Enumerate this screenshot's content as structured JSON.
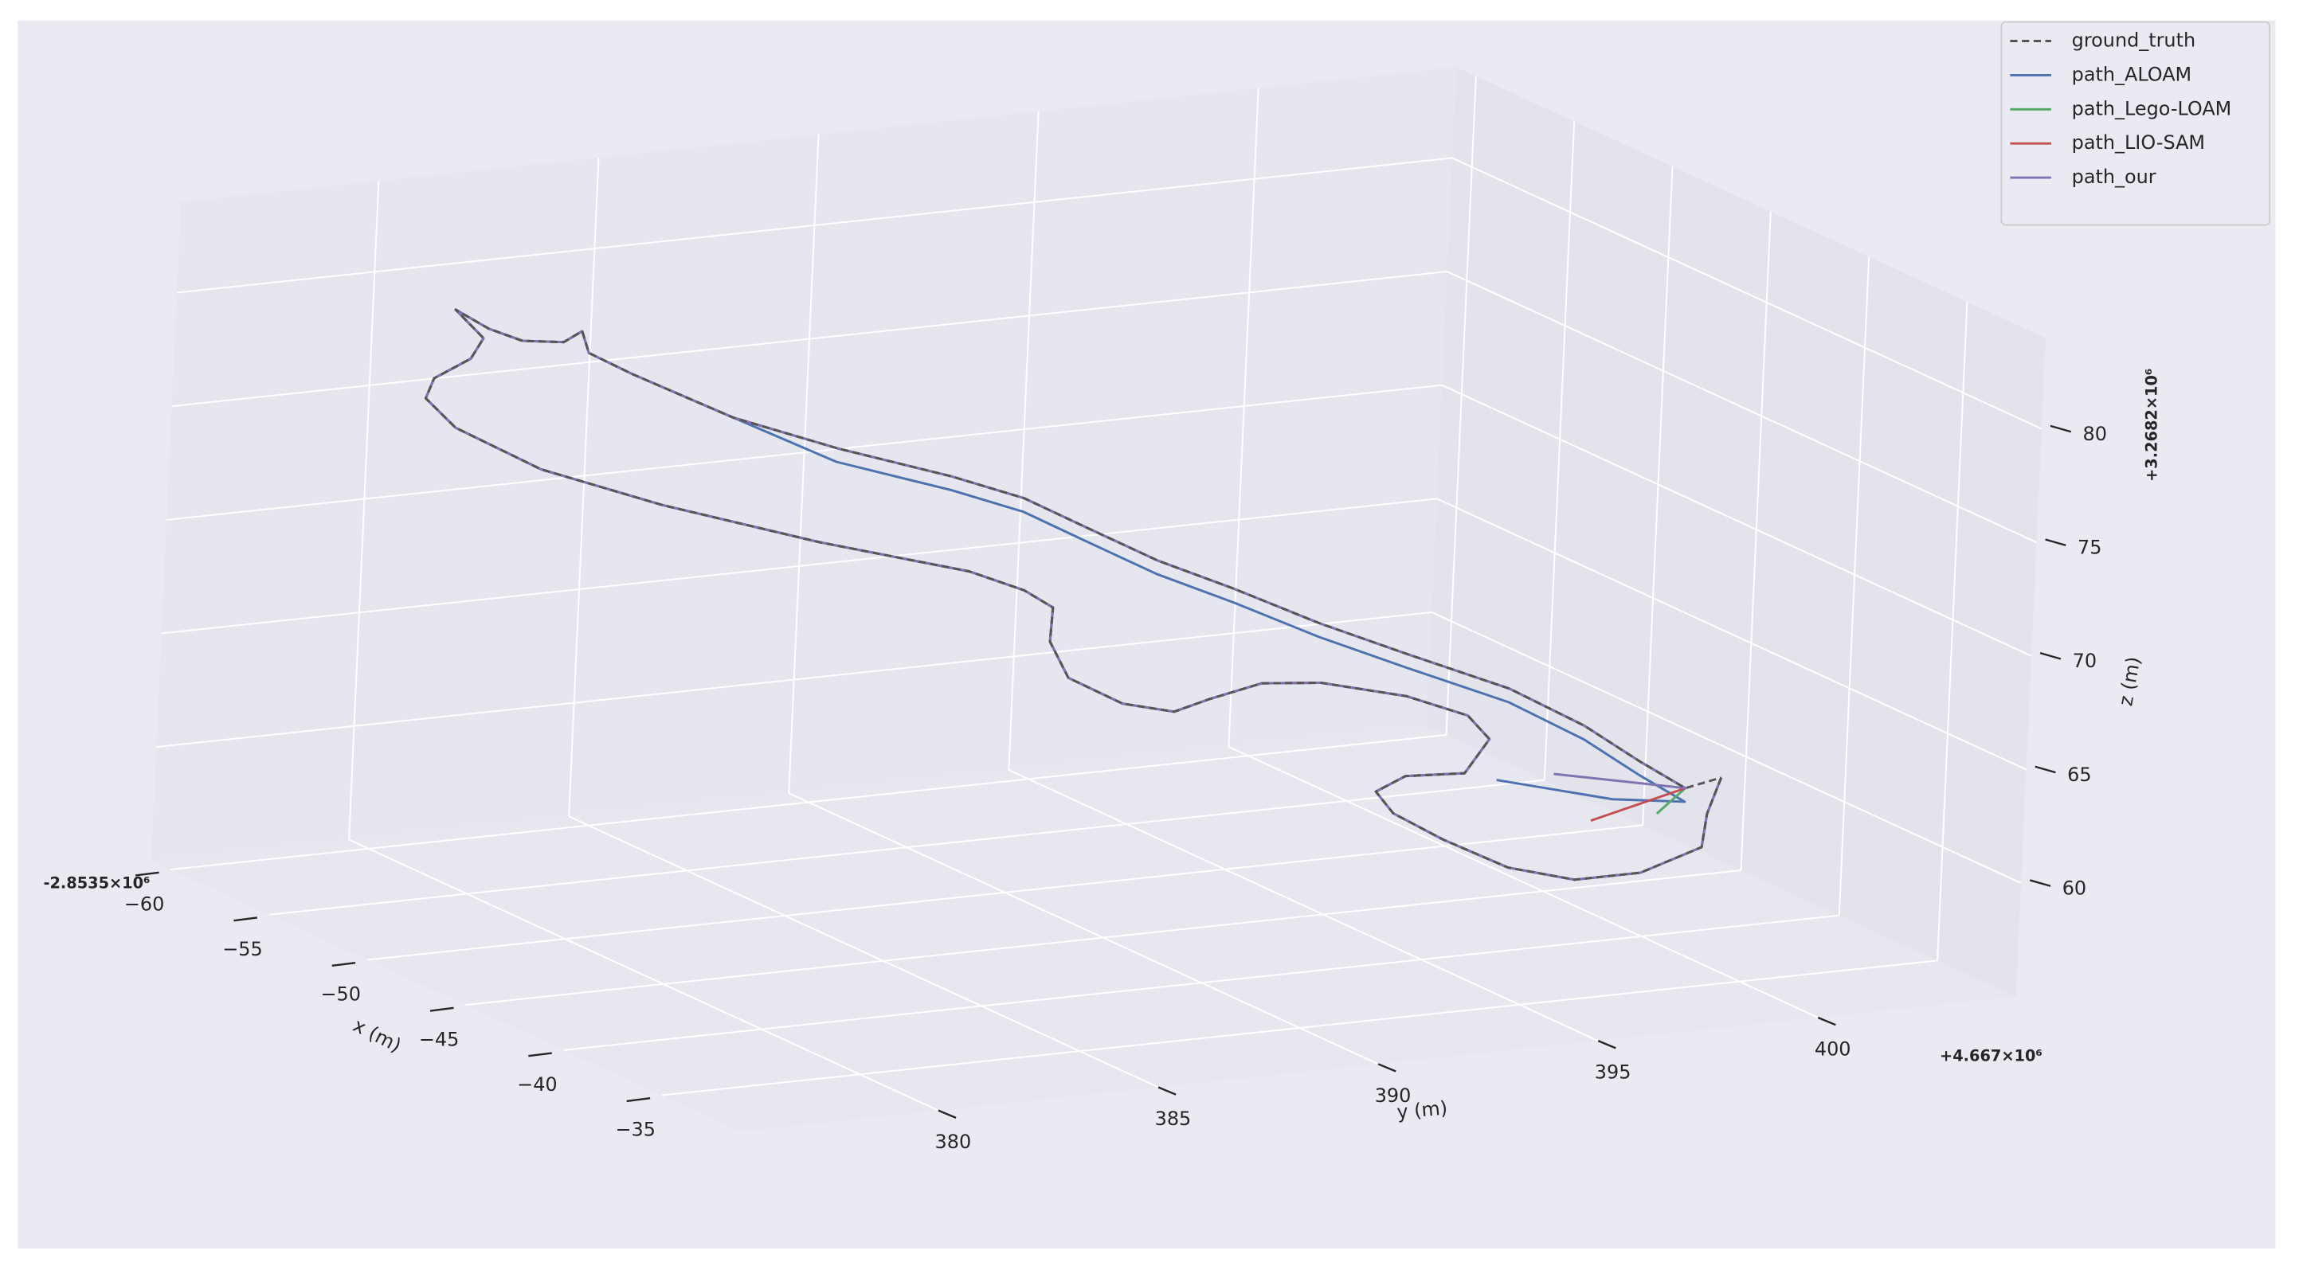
{
  "chart_data": {
    "type": "line3d",
    "xlabel": "x (m)",
    "ylabel": "y (m)",
    "zlabel": "z (m)",
    "x_offset_label": "-2.8535×10⁶",
    "y_offset_label": "+4.667×10⁶",
    "z_offset_label": "+3.2682×10⁶",
    "xlim": [
      -61,
      -31
    ],
    "ylim": [
      375.5,
      404.5
    ],
    "zlim": [
      55,
      84
    ],
    "xticks": [
      {
        "value": -60,
        "label": "−60"
      },
      {
        "value": -55,
        "label": "−55"
      },
      {
        "value": -50,
        "label": "−50"
      },
      {
        "value": -45,
        "label": "−45"
      },
      {
        "value": -40,
        "label": "−40"
      },
      {
        "value": -35,
        "label": "−35"
      }
    ],
    "yticks": [
      380,
      385,
      390,
      395,
      400
    ],
    "zticks": [
      60,
      65,
      70,
      75,
      80
    ],
    "grid": true,
    "legend": "upper right",
    "series": [
      {
        "name": "ground_truth",
        "color": "#555555",
        "linestyle": "dashed",
        "x": [
          -40.3,
          -39.4,
          -38.5,
          -38.0,
          -38.0,
          -38.5,
          -39.4,
          -40.2,
          -40.9,
          -41.2,
          -41.1,
          -41.9,
          -42.6,
          -43.3,
          -43.9,
          -44.0,
          -43.7,
          -43.5,
          -43.9,
          -44.7,
          -45.7,
          -46.5,
          -47.1,
          -47.7,
          -48.9,
          -50.3,
          -51.6,
          -52.9,
          -53.8,
          -54.3,
          -54.7,
          -55.2,
          -56.0,
          -55.4,
          -55.0,
          -54.9,
          -55.1,
          -54.5,
          -53.8,
          -52.4,
          -51.3,
          -50.3,
          -49.5,
          -48.6,
          -47.5,
          -46.5,
          -45.4,
          -44.4,
          -43.2,
          -42.0,
          -40.9,
          -40.1,
          -40.3
        ],
        "y": [
          401.8,
          401.1,
          400.6,
          399.0,
          397.5,
          396.2,
          395.1,
          394.3,
          394.2,
          395.0,
          396.3,
          397.2,
          397.0,
          395.9,
          394.2,
          392.9,
          391.6,
          390.7,
          389.7,
          388.8,
          388.8,
          389.2,
          388.8,
          387.8,
          384.9,
          381.9,
          379.7,
          378.3,
          378.0,
          378.4,
          379.4,
          379.9,
          379.6,
          380.1,
          380.7,
          381.6,
          382.1,
          382.0,
          382.7,
          384.4,
          386.3,
          388.5,
          389.8,
          390.8,
          392.0,
          393.3,
          394.8,
          396.4,
          398.2,
          399.4,
          400.2,
          400.9,
          401.8
        ],
        "z": [
          61.5,
          60.4,
          59.4,
          58.8,
          58.8,
          59.4,
          60.5,
          61.5,
          62.2,
          62.6,
          62.5,
          63.5,
          64.3,
          65.1,
          65.8,
          66.0,
          65.7,
          65.4,
          65.8,
          66.8,
          68.0,
          69.1,
          69.7,
          70.5,
          71.9,
          73.6,
          75.1,
          76.7,
          77.7,
          78.3,
          78.8,
          79.4,
          80.4,
          79.7,
          79.2,
          79.0,
          79.3,
          78.6,
          77.8,
          76.1,
          74.8,
          73.5,
          72.6,
          71.5,
          70.2,
          69.1,
          67.7,
          66.4,
          65.0,
          63.6,
          62.3,
          61.3,
          61.5
        ]
      },
      {
        "name": "path_ALOAM",
        "color": "#4c72b0",
        "linestyle": "solid",
        "x": [
          -40.3,
          -39.4,
          -38.5,
          -38.0,
          -38.0,
          -38.5,
          -39.4,
          -40.2,
          -40.9,
          -41.2,
          -41.1,
          -41.9,
          -42.6,
          -43.3,
          -43.9,
          -44.0,
          -43.7,
          -43.5,
          -43.9,
          -44.7,
          -45.7,
          -46.5,
          -47.1,
          -47.7,
          -48.9,
          -50.3,
          -51.6,
          -52.9,
          -53.8,
          -54.3,
          -54.7,
          -55.2,
          -56.0,
          -55.4,
          -55.0,
          -54.9,
          -55.1,
          -54.5,
          -53.8,
          -52.4,
          -51.3,
          -50.3,
          -49.5,
          -48.6,
          -47.5,
          -46.5,
          -45.4,
          -44.4,
          -43.2,
          -42.0,
          -40.9,
          -40.1,
          -40.0,
          -40.8
        ],
        "y": [
          401.8,
          401.1,
          400.6,
          399.0,
          397.5,
          396.2,
          395.1,
          394.3,
          394.2,
          395.0,
          396.3,
          397.2,
          397.0,
          395.9,
          394.2,
          392.9,
          391.6,
          390.7,
          389.7,
          388.8,
          388.8,
          389.2,
          388.8,
          387.8,
          384.9,
          381.9,
          379.7,
          378.3,
          378.0,
          378.4,
          379.4,
          379.9,
          379.6,
          380.1,
          380.7,
          381.6,
          382.1,
          382.0,
          382.7,
          384.4,
          386.3,
          388.5,
          389.8,
          390.8,
          392.0,
          393.3,
          394.8,
          396.4,
          398.2,
          399.4,
          400.2,
          400.9,
          399.2,
          396.9
        ],
        "z": [
          61.5,
          60.4,
          59.4,
          58.8,
          58.8,
          59.4,
          60.5,
          61.5,
          62.2,
          62.6,
          62.5,
          63.5,
          64.3,
          65.1,
          65.8,
          66.0,
          65.7,
          65.4,
          65.8,
          66.8,
          68.0,
          69.1,
          69.7,
          70.5,
          71.9,
          73.6,
          75.1,
          76.7,
          77.7,
          78.3,
          78.8,
          79.4,
          80.4,
          79.7,
          79.2,
          79.0,
          79.3,
          78.6,
          77.8,
          76.1,
          74.2,
          72.9,
          72.0,
          70.9,
          69.6,
          68.5,
          67.1,
          65.8,
          64.4,
          63.0,
          61.7,
          60.7,
          61.2,
          62.2
        ]
      },
      {
        "name": "path_Lego-LOAM",
        "color": "#55a868",
        "linestyle": "solid",
        "x": [
          -40.3,
          -39.4,
          -38.5,
          -38.0,
          -38.0,
          -38.5,
          -39.4,
          -40.2,
          -40.9,
          -41.2,
          -41.1,
          -41.9,
          -42.6,
          -43.3,
          -43.9,
          -44.0,
          -43.7,
          -43.5,
          -43.9,
          -44.7,
          -45.7,
          -46.5,
          -47.1,
          -47.7,
          -48.9,
          -50.3,
          -51.6,
          -52.9,
          -53.8,
          -54.3,
          -54.7,
          -55.2,
          -56.0,
          -55.4,
          -55.0,
          -54.9,
          -55.1,
          -54.5,
          -53.8,
          -52.4,
          -51.3,
          -50.3,
          -49.5,
          -48.6,
          -47.5,
          -46.5,
          -45.4,
          -44.4,
          -43.2,
          -42.0,
          -40.9,
          -40.1,
          -39.5
        ],
        "y": [
          401.8,
          401.1,
          400.6,
          399.0,
          397.5,
          396.2,
          395.1,
          394.3,
          394.2,
          395.0,
          396.3,
          397.2,
          397.0,
          395.9,
          394.2,
          392.9,
          391.6,
          390.7,
          389.7,
          388.8,
          388.8,
          389.2,
          388.8,
          387.8,
          384.9,
          381.9,
          379.7,
          378.3,
          378.0,
          378.4,
          379.4,
          379.9,
          379.6,
          380.1,
          380.7,
          381.6,
          382.1,
          382.0,
          382.7,
          384.4,
          386.3,
          388.5,
          389.8,
          390.8,
          392.0,
          393.3,
          394.8,
          396.4,
          398.2,
          399.4,
          400.2,
          400.9,
          400.0
        ],
        "z": [
          61.5,
          60.4,
          59.4,
          58.8,
          58.8,
          59.4,
          60.5,
          61.5,
          62.2,
          62.6,
          62.5,
          63.5,
          64.3,
          65.1,
          65.8,
          66.0,
          65.7,
          65.4,
          65.8,
          66.8,
          68.0,
          69.1,
          69.7,
          70.5,
          71.9,
          73.6,
          75.1,
          76.7,
          77.7,
          78.3,
          78.8,
          79.4,
          80.4,
          79.7,
          79.2,
          79.0,
          79.3,
          78.6,
          77.8,
          76.1,
          74.8,
          73.5,
          72.6,
          71.5,
          70.2,
          69.1,
          67.7,
          66.4,
          65.0,
          63.6,
          62.3,
          61.3,
          60.6
        ]
      },
      {
        "name": "path_LIO-SAM",
        "color": "#c44e52",
        "linestyle": "solid",
        "x": [
          -40.3,
          -39.4,
          -38.5,
          -38.0,
          -38.0,
          -38.5,
          -39.4,
          -40.2,
          -40.9,
          -41.2,
          -41.1,
          -41.9,
          -42.6,
          -43.3,
          -43.9,
          -44.0,
          -43.7,
          -43.5,
          -43.9,
          -44.7,
          -45.7,
          -46.5,
          -47.1,
          -47.7,
          -48.9,
          -50.3,
          -51.6,
          -52.9,
          -53.8,
          -54.3,
          -54.7,
          -55.2,
          -56.0,
          -55.4,
          -55.0,
          -54.9,
          -55.1,
          -54.5,
          -53.8,
          -52.4,
          -51.3,
          -50.3,
          -49.5,
          -48.6,
          -47.5,
          -46.5,
          -45.4,
          -44.4,
          -43.2,
          -42.0,
          -40.9,
          -40.1,
          -39.5
        ],
        "y": [
          401.8,
          401.1,
          400.6,
          399.0,
          397.5,
          396.2,
          395.1,
          394.3,
          394.2,
          395.0,
          396.3,
          397.2,
          397.0,
          395.9,
          394.2,
          392.9,
          391.6,
          390.7,
          389.7,
          388.8,
          388.8,
          389.2,
          388.8,
          387.8,
          384.9,
          381.9,
          379.7,
          378.3,
          378.0,
          378.4,
          379.4,
          379.9,
          379.6,
          380.1,
          380.7,
          381.6,
          382.1,
          382.0,
          382.7,
          384.4,
          386.3,
          388.5,
          389.8,
          390.8,
          392.0,
          393.3,
          394.8,
          396.4,
          398.2,
          399.4,
          400.2,
          400.9,
          398.5
        ],
        "z": [
          61.5,
          60.4,
          59.4,
          58.8,
          58.8,
          59.4,
          60.5,
          61.5,
          62.2,
          62.6,
          62.5,
          63.5,
          64.3,
          65.1,
          65.8,
          66.0,
          65.7,
          65.4,
          65.8,
          66.8,
          68.0,
          69.1,
          69.7,
          70.5,
          71.9,
          73.6,
          75.1,
          76.7,
          77.7,
          78.3,
          78.8,
          79.4,
          80.4,
          79.7,
          79.2,
          79.0,
          79.3,
          78.6,
          77.8,
          76.1,
          74.8,
          73.5,
          72.6,
          71.5,
          70.2,
          69.1,
          67.7,
          66.4,
          65.0,
          63.6,
          62.3,
          61.3,
          60.6
        ]
      },
      {
        "name": "path_our",
        "color": "#8172b2",
        "linestyle": "solid",
        "x": [
          -40.3,
          -39.4,
          -38.5,
          -38.0,
          -38.0,
          -38.5,
          -39.4,
          -40.2,
          -40.9,
          -41.2,
          -41.1,
          -41.9,
          -42.6,
          -43.3,
          -43.9,
          -44.0,
          -43.7,
          -43.5,
          -43.9,
          -44.7,
          -45.7,
          -46.5,
          -47.1,
          -47.7,
          -48.9,
          -50.3,
          -51.6,
          -52.9,
          -53.8,
          -54.3,
          -54.7,
          -55.2,
          -56.0,
          -55.4,
          -55.0,
          -54.9,
          -55.1,
          -54.5,
          -53.8,
          -52.4,
          -51.3,
          -50.3,
          -49.5,
          -48.6,
          -47.5,
          -46.5,
          -45.4,
          -44.4,
          -43.2,
          -42.0,
          -40.9,
          -40.1,
          -40.8
        ],
        "y": [
          401.8,
          401.1,
          400.6,
          399.0,
          397.5,
          396.2,
          395.1,
          394.3,
          394.2,
          395.0,
          396.3,
          397.2,
          397.0,
          395.9,
          394.2,
          392.9,
          391.6,
          390.7,
          389.7,
          388.8,
          388.8,
          389.2,
          388.8,
          387.8,
          384.9,
          381.9,
          379.7,
          378.3,
          378.0,
          378.4,
          379.4,
          379.9,
          379.6,
          380.1,
          380.7,
          381.6,
          382.1,
          382.0,
          382.7,
          384.4,
          386.3,
          388.5,
          389.8,
          390.8,
          392.0,
          393.3,
          394.8,
          396.4,
          398.2,
          399.4,
          400.2,
          400.9,
          398.2
        ],
        "z": [
          61.5,
          60.4,
          59.4,
          58.8,
          58.8,
          59.4,
          60.5,
          61.5,
          62.2,
          62.6,
          62.5,
          63.5,
          64.3,
          65.1,
          65.8,
          66.0,
          65.7,
          65.4,
          65.8,
          66.8,
          68.0,
          69.1,
          69.7,
          70.5,
          71.9,
          73.6,
          75.1,
          76.7,
          77.7,
          78.3,
          78.8,
          79.4,
          80.4,
          79.7,
          79.2,
          79.0,
          79.3,
          78.6,
          77.8,
          76.1,
          74.8,
          73.5,
          72.6,
          71.5,
          70.2,
          69.1,
          67.7,
          66.4,
          65.0,
          63.6,
          62.3,
          61.3,
          62.2
        ]
      }
    ]
  }
}
